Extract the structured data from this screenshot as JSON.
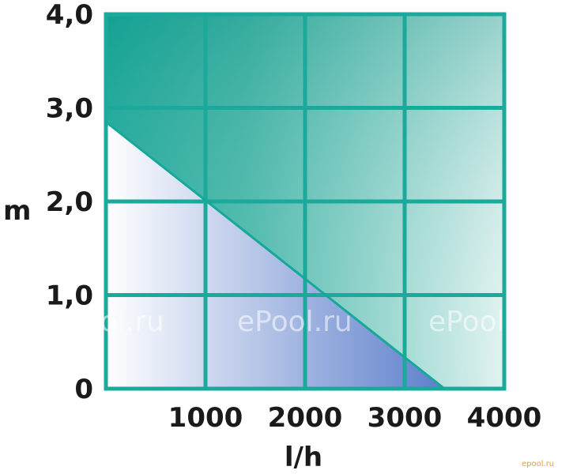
{
  "chart_data": {
    "type": "line",
    "title": "",
    "xlabel": "l/h",
    "ylabel": "m",
    "xlim": [
      0,
      4000
    ],
    "ylim": [
      0,
      4.0
    ],
    "x_ticks": [
      {
        "value": 1000,
        "label": "1000"
      },
      {
        "value": 2000,
        "label": "2000"
      },
      {
        "value": 3000,
        "label": "3000"
      },
      {
        "value": 4000,
        "label": "4000"
      }
    ],
    "y_ticks": [
      {
        "value": 0,
        "label": "0"
      },
      {
        "value": 1.0,
        "label": "1,0"
      },
      {
        "value": 2.0,
        "label": "2,0"
      },
      {
        "value": 3.0,
        "label": "3,0"
      },
      {
        "value": 4.0,
        "label": "4,0"
      }
    ],
    "grid": true,
    "series": [
      {
        "x": [
          0,
          3400
        ],
        "y": [
          2.85,
          0
        ]
      }
    ]
  },
  "colors": {
    "grid": "#1aa99a",
    "teal": "#16a898",
    "blue": "#5d7fcb"
  },
  "watermarks": [
    "ePool.ru",
    "ePool.ru",
    "ePool.ru"
  ],
  "corner_watermark": "epool.ru"
}
